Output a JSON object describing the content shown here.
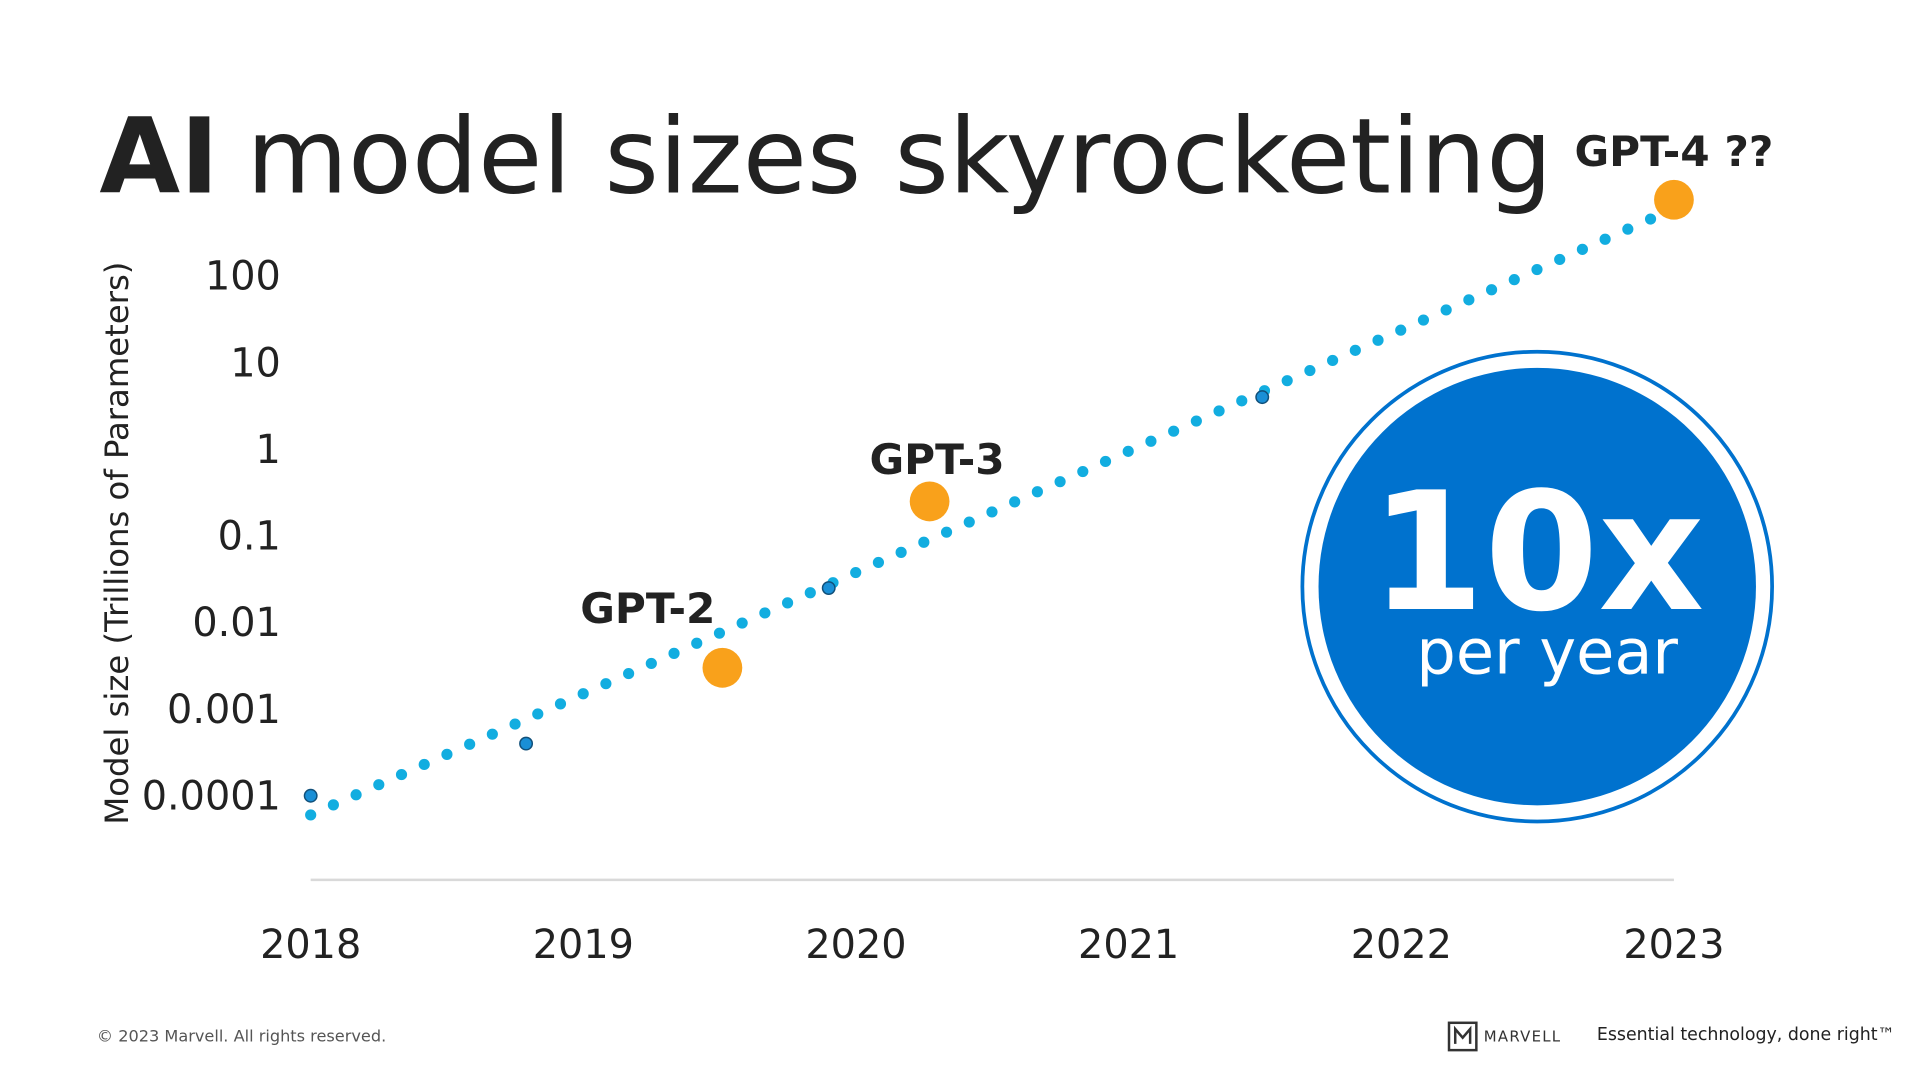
{
  "chart_data": {
    "type": "scatter",
    "title_lead": "AI",
    "title": "model sizes skyrocketing",
    "y_label": "Model size (Trillions of Parameters)",
    "ylog": true,
    "xlim": [
      2018,
      2023
    ],
    "ylim": [
      1e-05,
      1000
    ],
    "xticks": [
      2018,
      2019,
      2020,
      2021,
      2022,
      2023
    ],
    "yticks": [
      0.0001,
      0.001,
      0.01,
      0.1,
      1,
      10,
      100
    ],
    "trend": {
      "color": "#12ade0",
      "x": [
        2018,
        2023
      ],
      "values": [
        6e-05,
        600
      ]
    },
    "data_points": {
      "color": "#1a8fd6",
      "x": [
        2018.0,
        2018.79,
        2019.9,
        2021.49
      ],
      "values": [
        0.0001,
        0.0004,
        0.025,
        4
      ]
    },
    "highlights": {
      "color": "#f9a11b",
      "x": [
        2019.51,
        2020.27,
        2023.0
      ],
      "values": [
        0.003,
        0.25,
        759
      ],
      "labels": [
        "GPT-2",
        "GPT-3",
        "GPT-4 ??"
      ]
    },
    "callout": {
      "headline": "10x",
      "subline": "per year"
    },
    "footer": {
      "copyright": "© 2023 Marvell. All rights reserved.",
      "brand": "MARVELL",
      "tagline": "Essential technology, done right™"
    }
  }
}
